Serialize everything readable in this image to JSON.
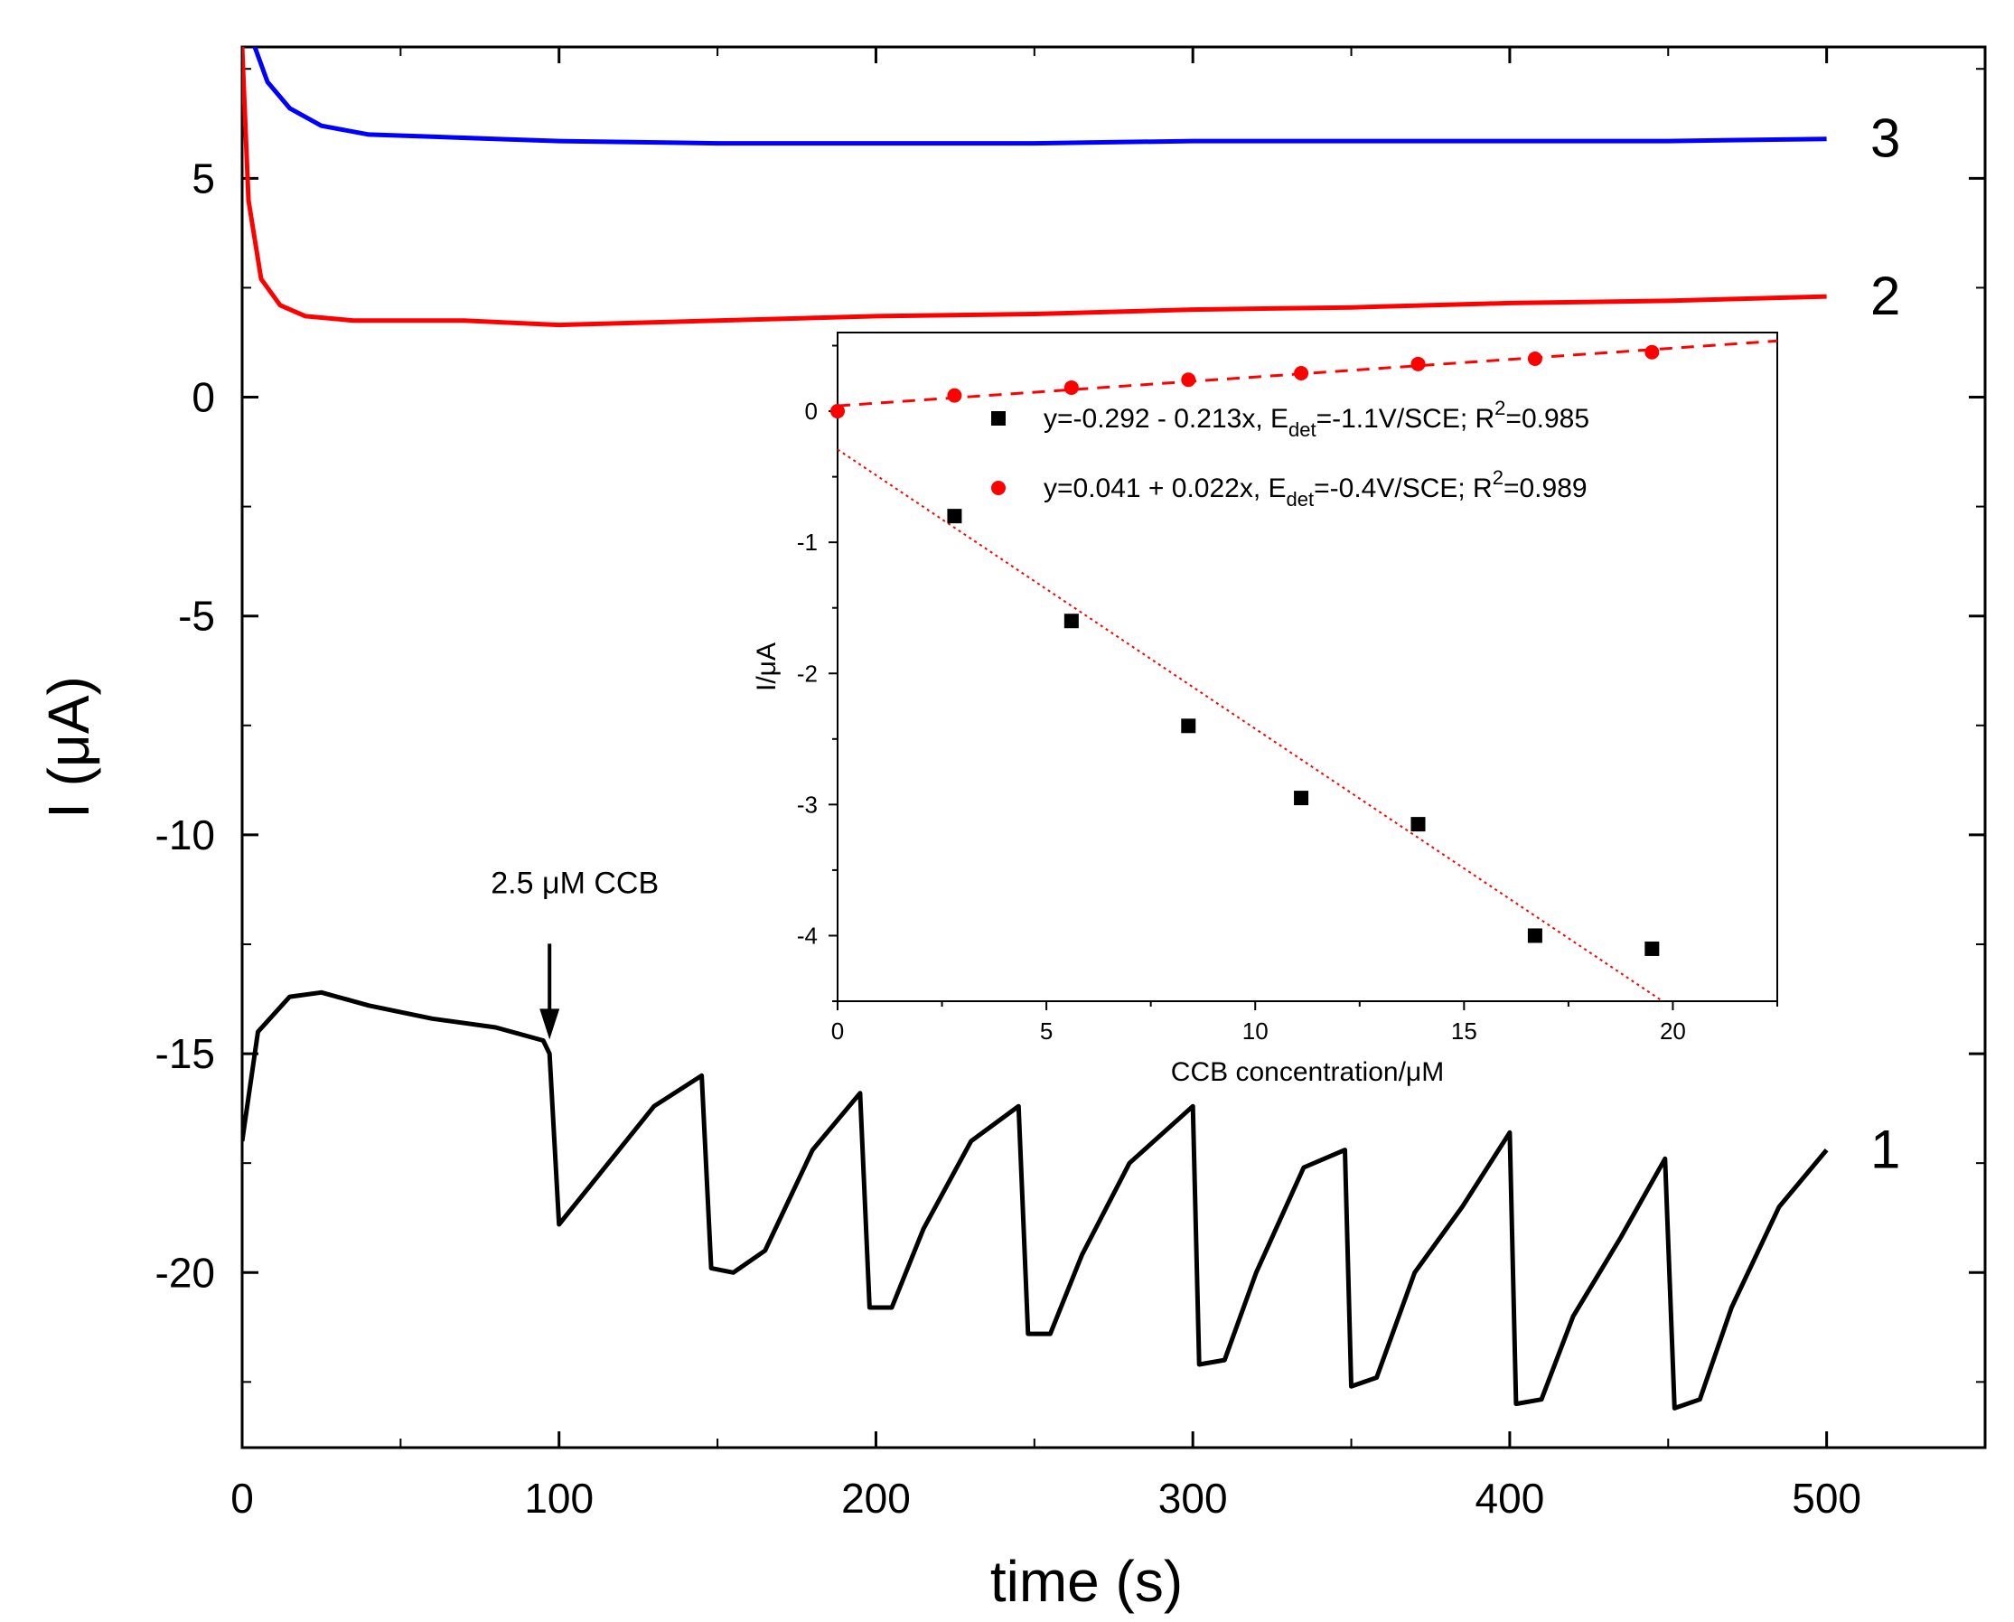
{
  "chart_data": [
    {
      "type": "line",
      "title": "",
      "xlabel": "time (s)",
      "ylabel": "I (μA)",
      "xlim": [
        0,
        550
      ],
      "ylim": [
        -24,
        8
      ],
      "xticks": [
        0,
        100,
        200,
        300,
        400,
        500
      ],
      "yticks": [
        5,
        0,
        -5,
        -10,
        -15,
        -20
      ],
      "xticklabels": [
        "0",
        "100",
        "200",
        "300",
        "400",
        "500"
      ],
      "yticklabels": [
        "5",
        "0",
        "-5",
        "-10",
        "-15",
        "-20"
      ],
      "injection_times": [
        97,
        147,
        197,
        247,
        300,
        350,
        400,
        450
      ],
      "series": [
        {
          "name": "1",
          "color": "#000000",
          "x": [
            0,
            5,
            15,
            25,
            40,
            60,
            80,
            95,
            97,
            100,
            110,
            130,
            145,
            148,
            155,
            165,
            180,
            195,
            198,
            205,
            215,
            230,
            245,
            248,
            255,
            265,
            280,
            300,
            302,
            310,
            320,
            335,
            348,
            350,
            358,
            370,
            385,
            400,
            402,
            410,
            420,
            435,
            449,
            452,
            460,
            470,
            485,
            500
          ],
          "values": [
            -17.0,
            -14.5,
            -13.7,
            -13.6,
            -13.9,
            -14.2,
            -14.4,
            -14.7,
            -15.0,
            -18.9,
            -18.0,
            -16.2,
            -15.5,
            -19.9,
            -20.0,
            -19.5,
            -17.2,
            -15.9,
            -20.8,
            -20.8,
            -19.0,
            -17.0,
            -16.2,
            -21.4,
            -21.4,
            -19.6,
            -17.5,
            -16.2,
            -22.1,
            -22.0,
            -20.0,
            -17.6,
            -17.2,
            -22.6,
            -22.4,
            -20.0,
            -18.5,
            -16.8,
            -23.0,
            -22.9,
            -21.0,
            -19.2,
            -17.4,
            -23.1,
            -22.9,
            -20.8,
            -18.5,
            -17.2
          ]
        },
        {
          "name": "2",
          "color": "#ff0000",
          "x": [
            0,
            2,
            6,
            12,
            20,
            35,
            50,
            70,
            100,
            150,
            200,
            250,
            300,
            350,
            400,
            450,
            500
          ],
          "values": [
            8.0,
            4.5,
            2.7,
            2.1,
            1.85,
            1.75,
            1.75,
            1.75,
            1.65,
            1.75,
            1.85,
            1.9,
            2.0,
            2.05,
            2.15,
            2.2,
            2.3
          ]
        },
        {
          "name": "3",
          "color": "#0000ff",
          "x": [
            4,
            8,
            15,
            25,
            40,
            60,
            80,
            100,
            150,
            200,
            250,
            300,
            350,
            400,
            450,
            500
          ],
          "values": [
            8.0,
            7.2,
            6.6,
            6.2,
            6.0,
            5.95,
            5.9,
            5.85,
            5.8,
            5.8,
            5.8,
            5.85,
            5.85,
            5.85,
            5.85,
            5.9
          ]
        }
      ],
      "annotations": [
        {
          "text": "2.5 μM CCB",
          "x": 97,
          "y": -14.8
        }
      ]
    },
    {
      "type": "scatter",
      "title": "",
      "xlabel": "CCB concentration/μM",
      "ylabel": "I/μA",
      "xlim": [
        0,
        22.5
      ],
      "ylim": [
        -4.5,
        0.6
      ],
      "xticks": [
        0,
        5,
        10,
        15,
        20
      ],
      "yticks": [
        0,
        -1,
        -2,
        -3,
        -4
      ],
      "xticklabels": [
        "0",
        "5",
        "10",
        "15",
        "20"
      ],
      "yticklabels": [
        "0",
        "-1",
        "-2",
        "-3",
        "-4"
      ],
      "series": [
        {
          "name": "E_det = -1.1V/SCE",
          "marker": "square",
          "color": "#000000",
          "x": [
            2.8,
            5.6,
            8.4,
            11.1,
            13.9,
            16.7,
            19.5
          ],
          "values": [
            -0.8,
            -1.6,
            -2.4,
            -2.95,
            -3.15,
            -4.0,
            -4.1
          ],
          "fit": {
            "intercept": -0.292,
            "slope": -0.213,
            "r2": 0.985,
            "style": "dotted"
          }
        },
        {
          "name": "E_det = -0.4V/SCE",
          "marker": "circle",
          "color": "#ff0000",
          "x": [
            0,
            2.8,
            5.6,
            8.4,
            11.1,
            13.9,
            16.7,
            19.5
          ],
          "values": [
            0.0,
            0.12,
            0.18,
            0.24,
            0.29,
            0.36,
            0.4,
            0.45
          ],
          "fit": {
            "intercept": 0.041,
            "slope": 0.022,
            "r2": 0.989,
            "style": "dashed"
          }
        }
      ],
      "legend": [
        {
          "pre": "y=-0.292 - 0.213x, E",
          "sub": "det",
          "mid": "=-1.1V/SCE; R",
          "sup": "2",
          "post": "=0.985"
        },
        {
          "pre": "y=0.041 + 0.022x, E",
          "sub": "det",
          "mid": "=-0.4V/SCE; R",
          "sup": "2",
          "post": "=0.989"
        }
      ]
    }
  ]
}
